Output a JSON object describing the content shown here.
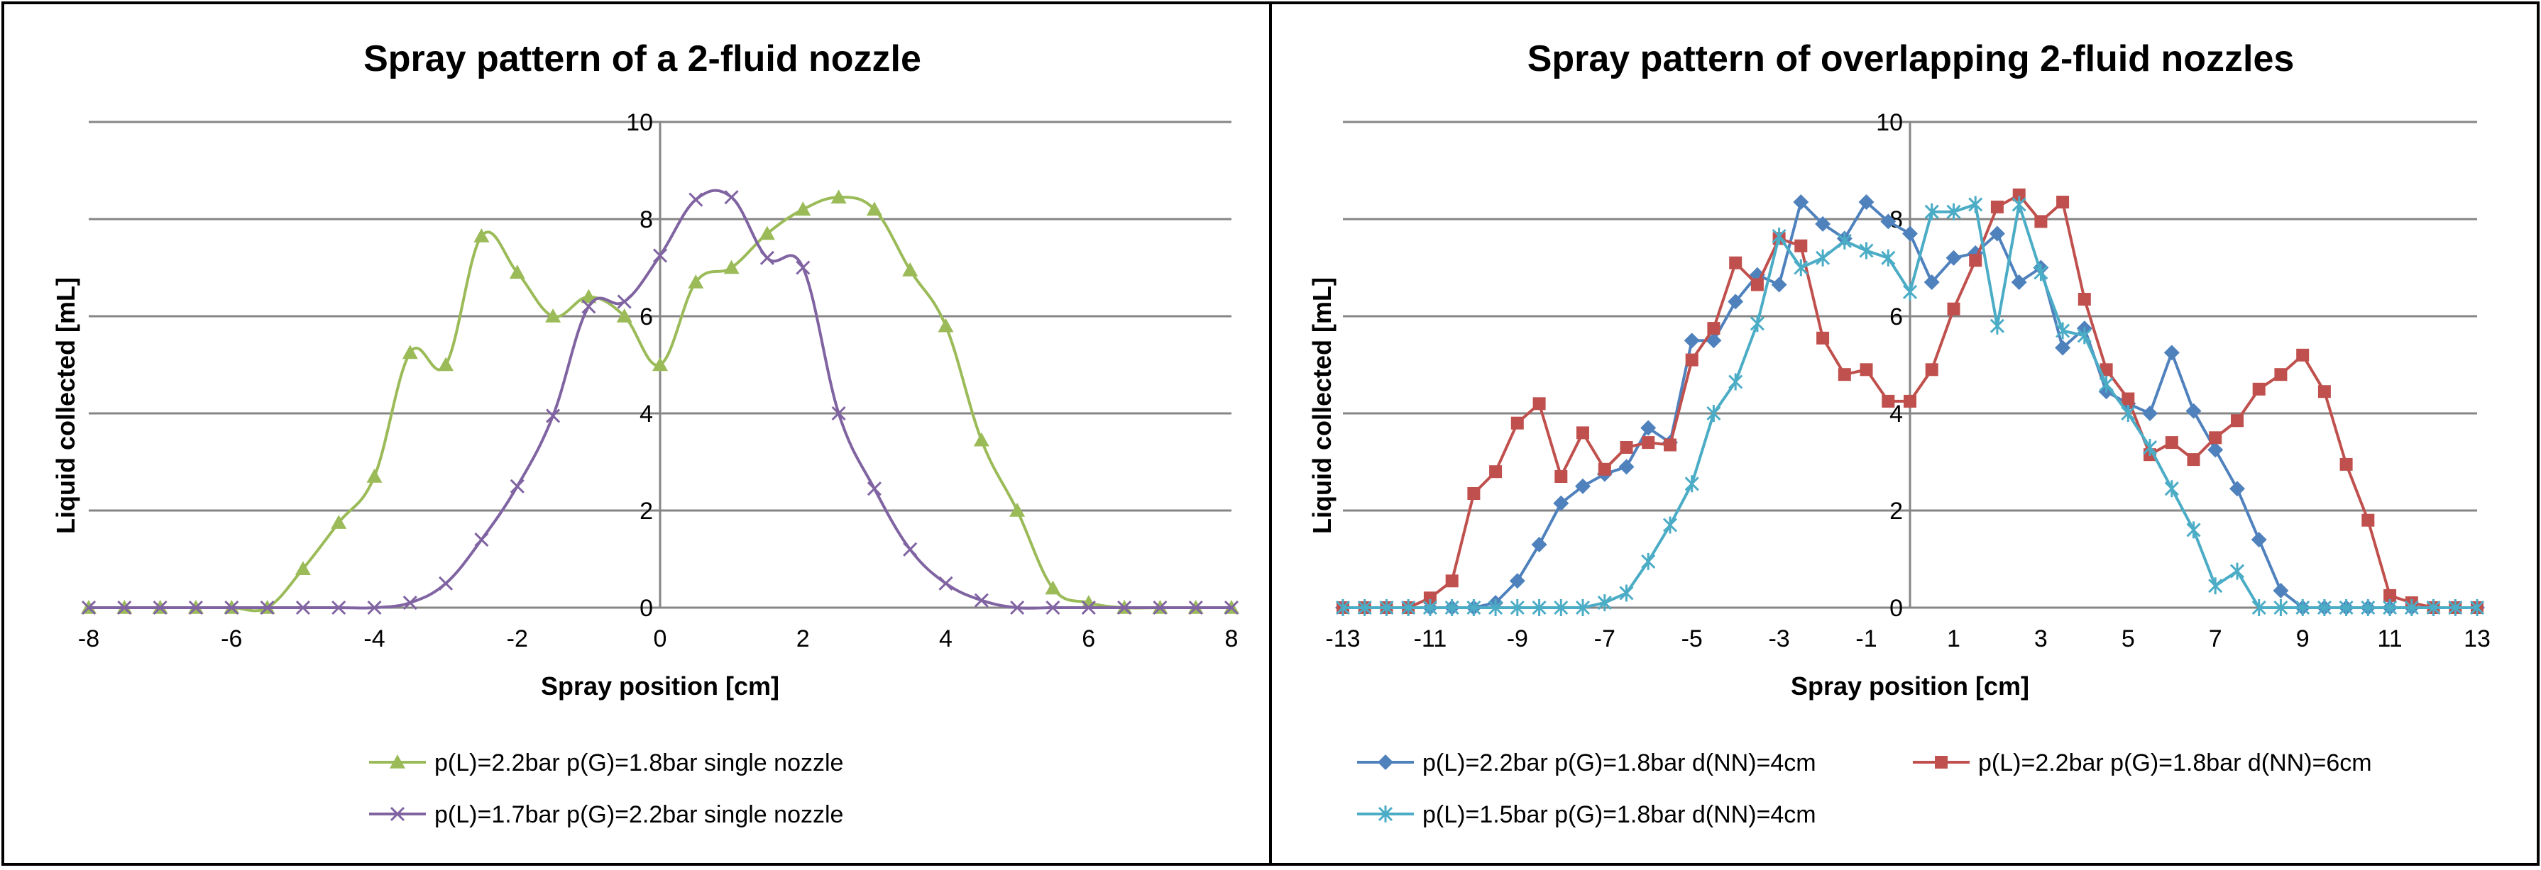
{
  "chart_data": [
    {
      "type": "line",
      "title": "Spray pattern of a 2-fluid nozzle",
      "xlabel": "Spray position [cm]",
      "ylabel": "Liquid collected [mL]",
      "xlim": [
        -8,
        8
      ],
      "ylim": [
        0,
        10
      ],
      "xticks": [
        -8,
        -6,
        -4,
        -2,
        0,
        2,
        4,
        6,
        8
      ],
      "yticks": [
        0,
        2,
        4,
        6,
        8,
        10
      ],
      "grid": "horizontal",
      "legend_position": "bottom",
      "series": [
        {
          "name": "p(L)=2.2bar p(G)=1.8bar single nozzle",
          "color": "#9BBB59",
          "marker": "triangle",
          "x": [
            -8,
            -7.5,
            -7,
            -6.5,
            -6,
            -5.5,
            -5,
            -4.5,
            -4,
            -3.5,
            -3,
            -2.5,
            -2,
            -1.5,
            -1,
            -0.5,
            0,
            0.5,
            1,
            1.5,
            2,
            2.5,
            3,
            3.5,
            4,
            4.5,
            5,
            5.5,
            6,
            6.5,
            7,
            7.5,
            8
          ],
          "y": [
            0,
            0,
            0,
            0,
            0,
            0,
            0.8,
            1.75,
            2.7,
            5.25,
            5.0,
            7.65,
            6.9,
            6.0,
            6.4,
            6.0,
            5.0,
            6.7,
            7.0,
            7.7,
            8.2,
            8.45,
            8.2,
            6.95,
            5.8,
            3.45,
            2.0,
            0.4,
            0.1,
            0,
            0,
            0,
            0
          ]
        },
        {
          "name": "p(L)=1.7bar p(G)=2.2bar single nozzle",
          "color": "#8064A2",
          "marker": "x",
          "x": [
            -8,
            -7.5,
            -7,
            -6.5,
            -6,
            -5.5,
            -5,
            -4.5,
            -4,
            -3.5,
            -3,
            -2.5,
            -2,
            -1.5,
            -1,
            -0.5,
            0,
            0.5,
            1,
            1.5,
            2,
            2.5,
            3,
            3.5,
            4,
            4.5,
            5,
            5.5,
            6,
            6.5,
            7,
            7.5,
            8
          ],
          "y": [
            0,
            0,
            0,
            0,
            0,
            0,
            0,
            0,
            0,
            0.1,
            0.5,
            1.4,
            2.5,
            3.95,
            6.2,
            6.3,
            7.25,
            8.4,
            8.45,
            7.2,
            7.0,
            4.0,
            2.45,
            1.2,
            0.5,
            0.15,
            0,
            0,
            0,
            0,
            0,
            0,
            0
          ]
        }
      ]
    },
    {
      "type": "line",
      "title": "Spray pattern of overlapping 2-fluid nozzles",
      "xlabel": "Spray position [cm]",
      "ylabel": "Liquid collected [mL]",
      "xlim": [
        -13,
        13
      ],
      "ylim": [
        0,
        10
      ],
      "xticks": [
        -13,
        -11,
        -9,
        -7,
        -5,
        -3,
        -1,
        1,
        3,
        5,
        7,
        9,
        11,
        13
      ],
      "yticks": [
        0,
        2,
        4,
        6,
        8,
        10
      ],
      "grid": "horizontal",
      "legend_position": "bottom",
      "series": [
        {
          "name": "p(L)=2.2bar p(G)=1.8bar d(NN)=4cm",
          "color": "#4F81BD",
          "marker": "diamond",
          "x": [
            -13,
            -12.5,
            -12,
            -11.5,
            -11,
            -10.5,
            -10,
            -9.5,
            -9,
            -8.5,
            -8,
            -7.5,
            -7,
            -6.5,
            -6,
            -5.5,
            -5,
            -4.5,
            -4,
            -3.5,
            -3,
            -2.5,
            -2,
            -1.5,
            -1,
            -0.5,
            0,
            0.5,
            1,
            1.5,
            2,
            2.5,
            3,
            3.5,
            4,
            4.5,
            5,
            5.5,
            6,
            6.5,
            7,
            7.5,
            8,
            8.5,
            9,
            9.5,
            10,
            10.5,
            11,
            11.5,
            12,
            12.5,
            13
          ],
          "y": [
            0,
            0,
            0,
            0,
            0,
            0,
            0,
            0.1,
            0.55,
            1.3,
            2.15,
            2.5,
            2.75,
            2.9,
            3.7,
            3.4,
            5.5,
            5.5,
            6.3,
            6.85,
            6.65,
            8.35,
            7.9,
            7.6,
            8.35,
            7.95,
            7.7,
            6.7,
            7.2,
            7.3,
            7.7,
            6.7,
            7.0,
            5.35,
            5.75,
            4.45,
            4.2,
            4.0,
            5.25,
            4.05,
            3.25,
            2.45,
            1.4,
            0.35,
            0,
            0,
            0,
            0,
            0,
            0,
            0,
            0,
            0
          ]
        },
        {
          "name": "p(L)=2.2bar p(G)=1.8bar d(NN)=6cm",
          "color": "#C0504D",
          "marker": "square",
          "x": [
            -13,
            -12.5,
            -12,
            -11.5,
            -11,
            -10.5,
            -10,
            -9.5,
            -9,
            -8.5,
            -8,
            -7.5,
            -7,
            -6.5,
            -6,
            -5.5,
            -5,
            -4.5,
            -4,
            -3.5,
            -3,
            -2.5,
            -2,
            -1.5,
            -1,
            -0.5,
            0,
            0.5,
            1,
            1.5,
            2,
            2.5,
            3,
            3.5,
            4,
            4.5,
            5,
            5.5,
            6,
            6.5,
            7,
            7.5,
            8,
            8.5,
            9,
            9.5,
            10,
            10.5,
            11,
            11.5,
            12,
            12.5,
            13
          ],
          "y": [
            0,
            0,
            0,
            0,
            0.2,
            0.55,
            2.35,
            2.8,
            3.8,
            4.2,
            2.7,
            3.6,
            2.85,
            3.3,
            3.4,
            3.35,
            5.1,
            5.75,
            7.1,
            6.65,
            7.6,
            7.45,
            5.55,
            4.8,
            4.9,
            4.25,
            4.25,
            4.9,
            6.15,
            7.15,
            8.25,
            8.5,
            7.95,
            8.35,
            6.35,
            4.9,
            4.3,
            3.15,
            3.4,
            3.05,
            3.5,
            3.85,
            4.5,
            4.8,
            5.2,
            4.45,
            2.95,
            1.8,
            0.25,
            0.1,
            0,
            0,
            0
          ]
        },
        {
          "name": "p(L)=1.5bar p(G)=1.8bar d(NN)=4cm",
          "color": "#4BACC6",
          "marker": "asterisk",
          "x": [
            -13,
            -12.5,
            -12,
            -11.5,
            -11,
            -10.5,
            -10,
            -9.5,
            -9,
            -8.5,
            -8,
            -7.5,
            -7,
            -6.5,
            -6,
            -5.5,
            -5,
            -4.5,
            -4,
            -3.5,
            -3,
            -2.5,
            -2,
            -1.5,
            -1,
            -0.5,
            0,
            0.5,
            1,
            1.5,
            2,
            2.5,
            3,
            3.5,
            4,
            4.5,
            5,
            5.5,
            6,
            6.5,
            7,
            7.5,
            8,
            8.5,
            9,
            9.5,
            10,
            10.5,
            11,
            11.5,
            12,
            12.5,
            13
          ],
          "y": [
            0,
            0,
            0,
            0,
            0,
            0,
            0,
            0,
            0,
            0,
            0,
            0,
            0.1,
            0.3,
            0.95,
            1.7,
            2.55,
            4.0,
            4.65,
            5.85,
            7.65,
            7.0,
            7.2,
            7.55,
            7.35,
            7.2,
            6.5,
            8.15,
            8.15,
            8.3,
            5.8,
            8.3,
            6.9,
            5.7,
            5.6,
            4.6,
            4.0,
            3.3,
            2.45,
            1.6,
            0.45,
            0.75,
            0,
            0,
            0,
            0,
            0,
            0,
            0,
            0,
            0,
            0,
            0
          ]
        }
      ]
    }
  ]
}
